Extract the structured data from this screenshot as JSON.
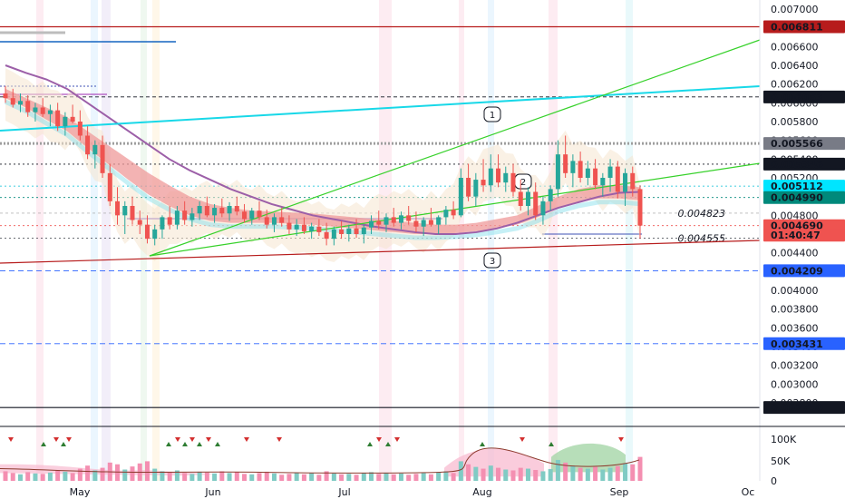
{
  "chart_data": {
    "type": "candlestick",
    "x_ticks": [
      "May",
      "Jun",
      "Jul",
      "Aug",
      "Sep",
      "Oc"
    ],
    "y_ticks": [
      "0.007000",
      "0.006800",
      "0.006600",
      "0.006400",
      "0.006200",
      "0.006000",
      "0.005800",
      "0.005600",
      "0.005400",
      "0.005200",
      "0.005000",
      "0.004800",
      "0.004600",
      "0.004400",
      "0.004200",
      "0.004000",
      "0.003800",
      "0.003600",
      "0.003400",
      "0.003200",
      "0.003000",
      "0.002800"
    ],
    "ylim": [
      0.0027,
      0.0071
    ],
    "price_labels": [
      {
        "text": "0.006811",
        "value": 0.006811,
        "bg": "#b71c1c",
        "fg": "#ffffff"
      },
      {
        "text": "0.006063",
        "value": 0.006063,
        "bg": "#131722",
        "fg": "#ffffff"
      },
      {
        "text": "0.005566",
        "value": 0.005566,
        "bg": "#787b86",
        "fg": "#ffffff"
      },
      {
        "text": "0.005346",
        "value": 0.005346,
        "bg": "#131722",
        "fg": "#ffffff"
      },
      {
        "text": "0.005112",
        "value": 0.005112,
        "bg": "#00e5ff",
        "fg": "#131722"
      },
      {
        "text": "0.004990",
        "value": 0.00499,
        "bg": "#00897b",
        "fg": "#ffffff"
      },
      {
        "text": "0.004690",
        "value": 0.00469,
        "bg": "#ef5350",
        "fg": "#ffffff"
      },
      {
        "text": "01:40:47",
        "value": 0.004588,
        "bg": "#ef5350",
        "fg": "#ffffff"
      },
      {
        "text": "0.004209",
        "value": 0.004209,
        "bg": "#2962ff",
        "fg": "#ffffff"
      },
      {
        "text": "0.003431",
        "value": 0.003431,
        "bg": "#2962ff",
        "fg": "#ffffff"
      },
      {
        "text": "0.002750",
        "value": 0.00275,
        "bg": "#131722",
        "fg": "#ffffff"
      }
    ],
    "inline_labels": [
      {
        "text": "0.004823",
        "value": 0.004823
      },
      {
        "text": "0.004555",
        "value": 0.004555
      }
    ],
    "callouts": [
      "1",
      "2",
      "3"
    ],
    "volume_ticks": [
      "100K",
      "50K",
      "0"
    ],
    "candles": [
      {
        "o": 0.0061,
        "h": 0.00618,
        "l": 0.006,
        "c": 0.00605
      },
      {
        "o": 0.00605,
        "h": 0.00615,
        "l": 0.00595,
        "c": 0.00598
      },
      {
        "o": 0.00598,
        "h": 0.0061,
        "l": 0.0059,
        "c": 0.00602
      },
      {
        "o": 0.00602,
        "h": 0.00608,
        "l": 0.00585,
        "c": 0.0059
      },
      {
        "o": 0.0059,
        "h": 0.006,
        "l": 0.0058,
        "c": 0.00595
      },
      {
        "o": 0.00595,
        "h": 0.00605,
        "l": 0.00585,
        "c": 0.00588
      },
      {
        "o": 0.00588,
        "h": 0.00598,
        "l": 0.00575,
        "c": 0.00592
      },
      {
        "o": 0.00592,
        "h": 0.006,
        "l": 0.0057,
        "c": 0.00575
      },
      {
        "o": 0.00575,
        "h": 0.0059,
        "l": 0.00565,
        "c": 0.00585
      },
      {
        "o": 0.00585,
        "h": 0.00598,
        "l": 0.00578,
        "c": 0.0058
      },
      {
        "o": 0.0058,
        "h": 0.00592,
        "l": 0.0056,
        "c": 0.00565
      },
      {
        "o": 0.00565,
        "h": 0.00575,
        "l": 0.0054,
        "c": 0.00545
      },
      {
        "o": 0.00545,
        "h": 0.0056,
        "l": 0.0053,
        "c": 0.00555
      },
      {
        "o": 0.00555,
        "h": 0.00565,
        "l": 0.0052,
        "c": 0.00525
      },
      {
        "o": 0.00525,
        "h": 0.00535,
        "l": 0.0049,
        "c": 0.00495
      },
      {
        "o": 0.00495,
        "h": 0.0051,
        "l": 0.0047,
        "c": 0.0048
      },
      {
        "o": 0.0048,
        "h": 0.00495,
        "l": 0.0046,
        "c": 0.0049
      },
      {
        "o": 0.0049,
        "h": 0.005,
        "l": 0.0047,
        "c": 0.00475
      },
      {
        "o": 0.00475,
        "h": 0.00485,
        "l": 0.0046,
        "c": 0.0047
      },
      {
        "o": 0.0047,
        "h": 0.0048,
        "l": 0.0045,
        "c": 0.00455
      },
      {
        "o": 0.00455,
        "h": 0.0047,
        "l": 0.00448,
        "c": 0.00465
      },
      {
        "o": 0.00465,
        "h": 0.0048,
        "l": 0.00455,
        "c": 0.00478
      },
      {
        "o": 0.00478,
        "h": 0.0049,
        "l": 0.00465,
        "c": 0.0047
      },
      {
        "o": 0.0047,
        "h": 0.0049,
        "l": 0.00465,
        "c": 0.00485
      },
      {
        "o": 0.00485,
        "h": 0.00495,
        "l": 0.0047,
        "c": 0.00475
      },
      {
        "o": 0.00475,
        "h": 0.00488,
        "l": 0.00468,
        "c": 0.00482
      },
      {
        "o": 0.00482,
        "h": 0.00495,
        "l": 0.00475,
        "c": 0.0049
      },
      {
        "o": 0.0049,
        "h": 0.005,
        "l": 0.00478,
        "c": 0.0048
      },
      {
        "o": 0.0048,
        "h": 0.00492,
        "l": 0.00472,
        "c": 0.00488
      },
      {
        "o": 0.00488,
        "h": 0.00498,
        "l": 0.00478,
        "c": 0.00482
      },
      {
        "o": 0.00482,
        "h": 0.00494,
        "l": 0.00474,
        "c": 0.0049
      },
      {
        "o": 0.0049,
        "h": 0.005,
        "l": 0.0048,
        "c": 0.00484
      },
      {
        "o": 0.00484,
        "h": 0.00492,
        "l": 0.00472,
        "c": 0.00476
      },
      {
        "o": 0.00476,
        "h": 0.00488,
        "l": 0.0047,
        "c": 0.00485
      },
      {
        "o": 0.00485,
        "h": 0.00495,
        "l": 0.00475,
        "c": 0.00478
      },
      {
        "o": 0.00478,
        "h": 0.00486,
        "l": 0.00466,
        "c": 0.0047
      },
      {
        "o": 0.0047,
        "h": 0.00482,
        "l": 0.00462,
        "c": 0.00478
      },
      {
        "o": 0.00478,
        "h": 0.00488,
        "l": 0.00468,
        "c": 0.00472
      },
      {
        "o": 0.00472,
        "h": 0.0048,
        "l": 0.0046,
        "c": 0.00465
      },
      {
        "o": 0.00465,
        "h": 0.00476,
        "l": 0.00458,
        "c": 0.0047
      },
      {
        "o": 0.0047,
        "h": 0.00478,
        "l": 0.0046,
        "c": 0.00463
      },
      {
        "o": 0.00463,
        "h": 0.00472,
        "l": 0.00455,
        "c": 0.00468
      },
      {
        "o": 0.00468,
        "h": 0.00476,
        "l": 0.00458,
        "c": 0.00462
      },
      {
        "o": 0.00462,
        "h": 0.00472,
        "l": 0.00448,
        "c": 0.00455
      },
      {
        "o": 0.00455,
        "h": 0.00468,
        "l": 0.00448,
        "c": 0.00465
      },
      {
        "o": 0.00465,
        "h": 0.00474,
        "l": 0.00455,
        "c": 0.0046
      },
      {
        "o": 0.0046,
        "h": 0.0047,
        "l": 0.00452,
        "c": 0.00466
      },
      {
        "o": 0.00466,
        "h": 0.00476,
        "l": 0.00456,
        "c": 0.0046
      },
      {
        "o": 0.0046,
        "h": 0.0047,
        "l": 0.0045,
        "c": 0.00467
      },
      {
        "o": 0.00467,
        "h": 0.0048,
        "l": 0.0046,
        "c": 0.00474
      },
      {
        "o": 0.00474,
        "h": 0.00485,
        "l": 0.00465,
        "c": 0.0047
      },
      {
        "o": 0.0047,
        "h": 0.00482,
        "l": 0.00462,
        "c": 0.00478
      },
      {
        "o": 0.00478,
        "h": 0.00488,
        "l": 0.00468,
        "c": 0.00472
      },
      {
        "o": 0.00472,
        "h": 0.00484,
        "l": 0.00465,
        "c": 0.0048
      },
      {
        "o": 0.0048,
        "h": 0.0049,
        "l": 0.0047,
        "c": 0.00474
      },
      {
        "o": 0.00474,
        "h": 0.00484,
        "l": 0.00462,
        "c": 0.00468
      },
      {
        "o": 0.00468,
        "h": 0.00478,
        "l": 0.00458,
        "c": 0.00475
      },
      {
        "o": 0.00475,
        "h": 0.00488,
        "l": 0.00468,
        "c": 0.0047
      },
      {
        "o": 0.0047,
        "h": 0.0048,
        "l": 0.0046,
        "c": 0.00478
      },
      {
        "o": 0.00478,
        "h": 0.0049,
        "l": 0.0047,
        "c": 0.00486
      },
      {
        "o": 0.00486,
        "h": 0.00495,
        "l": 0.00476,
        "c": 0.0048
      },
      {
        "o": 0.0048,
        "h": 0.0053,
        "l": 0.00478,
        "c": 0.0052
      },
      {
        "o": 0.0052,
        "h": 0.00535,
        "l": 0.00495,
        "c": 0.005
      },
      {
        "o": 0.005,
        "h": 0.00525,
        "l": 0.0049,
        "c": 0.00518
      },
      {
        "o": 0.00518,
        "h": 0.0054,
        "l": 0.00505,
        "c": 0.00512
      },
      {
        "o": 0.00512,
        "h": 0.00545,
        "l": 0.00505,
        "c": 0.0053
      },
      {
        "o": 0.0053,
        "h": 0.00545,
        "l": 0.0051,
        "c": 0.00515
      },
      {
        "o": 0.00515,
        "h": 0.00532,
        "l": 0.00505,
        "c": 0.00525
      },
      {
        "o": 0.00525,
        "h": 0.00535,
        "l": 0.005,
        "c": 0.00505
      },
      {
        "o": 0.00505,
        "h": 0.00518,
        "l": 0.00485,
        "c": 0.0049
      },
      {
        "o": 0.0049,
        "h": 0.0051,
        "l": 0.0048,
        "c": 0.00505
      },
      {
        "o": 0.00505,
        "h": 0.00515,
        "l": 0.00475,
        "c": 0.0048
      },
      {
        "o": 0.0048,
        "h": 0.005,
        "l": 0.0047,
        "c": 0.00495
      },
      {
        "o": 0.00495,
        "h": 0.00512,
        "l": 0.00485,
        "c": 0.00508
      },
      {
        "o": 0.00508,
        "h": 0.0056,
        "l": 0.005,
        "c": 0.00545
      },
      {
        "o": 0.00545,
        "h": 0.00565,
        "l": 0.0052,
        "c": 0.00525
      },
      {
        "o": 0.00525,
        "h": 0.00545,
        "l": 0.0051,
        "c": 0.00538
      },
      {
        "o": 0.00538,
        "h": 0.00548,
        "l": 0.00515,
        "c": 0.0052
      },
      {
        "o": 0.0052,
        "h": 0.00538,
        "l": 0.00512,
        "c": 0.0053
      },
      {
        "o": 0.0053,
        "h": 0.0054,
        "l": 0.00508,
        "c": 0.00512
      },
      {
        "o": 0.00512,
        "h": 0.00525,
        "l": 0.005,
        "c": 0.0052
      },
      {
        "o": 0.0052,
        "h": 0.0054,
        "l": 0.00505,
        "c": 0.00532
      },
      {
        "o": 0.00532,
        "h": 0.00538,
        "l": 0.00498,
        "c": 0.00505
      },
      {
        "o": 0.00505,
        "h": 0.0053,
        "l": 0.0049,
        "c": 0.00525
      },
      {
        "o": 0.00525,
        "h": 0.00532,
        "l": 0.005,
        "c": 0.00508
      },
      {
        "o": 0.00508,
        "h": 0.00512,
        "l": 0.00455,
        "c": 0.00469
      }
    ],
    "volumes": [
      22,
      18,
      15,
      20,
      17,
      16,
      19,
      25,
      21,
      18,
      28,
      35,
      24,
      30,
      42,
      38,
      26,
      33,
      40,
      45,
      28,
      22,
      20,
      24,
      18,
      16,
      21,
      19,
      17,
      22,
      18,
      20,
      16,
      15,
      18,
      21,
      17,
      14,
      16,
      19,
      15,
      18,
      14,
      22,
      17,
      15,
      16,
      14,
      18,
      20,
      16,
      19,
      15,
      17,
      14,
      16,
      18,
      15,
      20,
      22,
      18,
      45,
      38,
      32,
      28,
      35,
      30,
      26,
      24,
      30,
      28,
      25,
      22,
      27,
      48,
      42,
      35,
      30,
      28,
      32,
      26,
      30,
      34,
      40,
      38,
      55
    ],
    "ema_upper": [
      0.00615,
      0.00605,
      0.00595,
      0.00585,
      0.0057,
      0.00555,
      0.0054,
      0.00525,
      0.00512,
      0.005,
      0.00492,
      0.00488,
      0.00485,
      0.00484,
      0.00483,
      0.00482,
      0.0048,
      0.00478,
      0.00476,
      0.00474,
      0.00472,
      0.0047,
      0.0047,
      0.00472,
      0.00476,
      0.0048,
      0.0049,
      0.005,
      0.00508,
      0.00512,
      0.00512,
      0.0051
    ],
    "ema_lower": [
      0.00605,
      0.00595,
      0.00582,
      0.0057,
      0.00552,
      0.00535,
      0.00518,
      0.00502,
      0.0049,
      0.0048,
      0.00474,
      0.00472,
      0.00472,
      0.00472,
      0.00471,
      0.0047,
      0.00468,
      0.00466,
      0.00464,
      0.00462,
      0.0046,
      0.0046,
      0.00461,
      0.00463,
      0.00466,
      0.0047,
      0.00478,
      0.00488,
      0.00494,
      0.00498,
      0.00498,
      0.00496
    ],
    "ma_purple": [
      0.0064,
      0.00632,
      0.00625,
      0.00615,
      0.006,
      0.00585,
      0.0057,
      0.00555,
      0.0054,
      0.00528,
      0.00518,
      0.00508,
      0.005,
      0.00492,
      0.00486,
      0.0048,
      0.00476,
      0.00472,
      0.00468,
      0.00465,
      0.00462,
      0.0046,
      0.0046,
      0.00462,
      0.00466,
      0.00472,
      0.0048,
      0.00488,
      0.00494,
      0.005,
      0.00504,
      0.00505
    ]
  }
}
